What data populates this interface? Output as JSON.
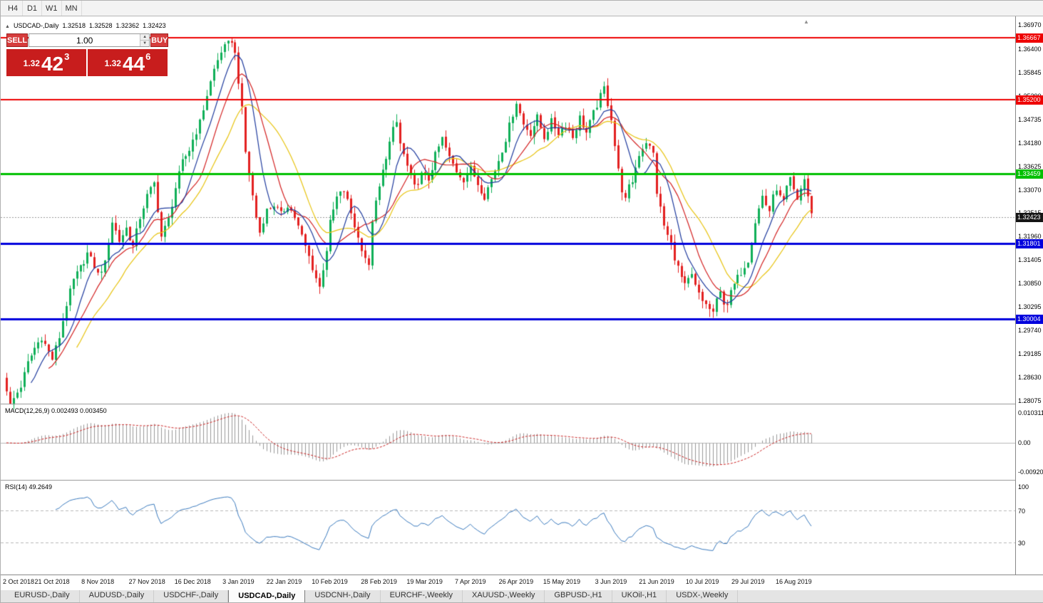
{
  "toolbar": {
    "timeframes": [
      "H4",
      "D1",
      "W1",
      "MN"
    ]
  },
  "icons": {
    "collapse": "▲",
    "shift_marker": "▲",
    "spin_up": "▲",
    "spin_down": "▼"
  },
  "trade_panel": {
    "sell_label": "SELL",
    "buy_label": "BUY",
    "volume": "1.00",
    "sell_price_prefix": "1.32",
    "sell_price_big": "42",
    "sell_price_sup": "3",
    "buy_price_prefix": "1.32",
    "buy_price_big": "44",
    "buy_price_sup": "6"
  },
  "tabs": [
    {
      "label": "EURUSD-,Daily",
      "active": false
    },
    {
      "label": "AUDUSD-,Daily",
      "active": false
    },
    {
      "label": "USDCHF-,Daily",
      "active": false
    },
    {
      "label": "USDCAD-,Daily",
      "active": true
    },
    {
      "label": "USDCNH-,Daily",
      "active": false
    },
    {
      "label": "EURCHF-,Weekly",
      "active": false
    },
    {
      "label": "XAUUSD-,Weekly",
      "active": false
    },
    {
      "label": "GBPUSD-,H1",
      "active": false
    },
    {
      "label": "UKOil-,H1",
      "active": false
    },
    {
      "label": "USDX-,Weekly",
      "active": false
    }
  ],
  "chart_data": {
    "type": "candlestick",
    "symbol": "USDCAD",
    "timeframe": "Daily",
    "title": "USDCAD-,Daily",
    "last_bar": {
      "open": "1.32518",
      "high": "1.32528",
      "low": "1.32362",
      "close": "1.32423"
    },
    "bars": 230,
    "view": {
      "price_top": 1.3718,
      "price_bottom": 1.28
    },
    "candle_up_color": "#0faf58",
    "candle_down_color": "#e32020",
    "price_axis_ticks": [
      "1.36970",
      "1.36400",
      "1.35845",
      "1.35290",
      "1.34735",
      "1.34180",
      "1.33625",
      "1.33070",
      "1.32515",
      "1.31960",
      "1.31405",
      "1.30850",
      "1.30295",
      "1.29740",
      "1.29185",
      "1.28630",
      "1.28075"
    ],
    "hlines": [
      {
        "price": 1.36667,
        "label": "1.36667",
        "color": "#ee0000",
        "width": 2
      },
      {
        "price": 1.352,
        "label": "1.35200",
        "color": "#ee0000",
        "width": 2
      },
      {
        "price": 1.33459,
        "label": "1.33459",
        "color": "#00c000",
        "width": 3
      },
      {
        "price": 1.31801,
        "label": "1.31801",
        "color": "#0000dd",
        "width": 3
      },
      {
        "price": 1.30004,
        "label": "1.30004",
        "color": "#0000dd",
        "width": 3
      }
    ],
    "current_price": {
      "value": 1.32423,
      "label": "1.32423",
      "tag_color": "#151515"
    },
    "moving_averages": [
      {
        "period": 21,
        "color": "#e8c410"
      },
      {
        "period": 13,
        "color": "#d42222"
      },
      {
        "period": 8,
        "color": "#1f3b9e"
      }
    ],
    "macd": {
      "fast": 12,
      "slow": 26,
      "signal": 9,
      "value": "0.002493",
      "signal_value": "0.003450",
      "label": "MACD(12,26,9) 0.002493 0.003450",
      "hist_color": "#999999",
      "signal_color": "#cc2222",
      "ticks": [
        "0.010311",
        "0.00",
        "-0.009203"
      ]
    },
    "rsi": {
      "period": 14,
      "value": "49.2649",
      "label": "RSI(14) 49.2649",
      "color": "#3b7bbf",
      "levels": [
        70,
        30
      ],
      "ticks": [
        "100",
        "70",
        "30"
      ]
    },
    "date_labels": [
      {
        "label": "2 Oct 2018",
        "i": 0
      },
      {
        "label": "21 Oct 2018",
        "i": 13
      },
      {
        "label": "8 Nov 2018",
        "i": 26
      },
      {
        "label": "27 Nov 2018",
        "i": 40
      },
      {
        "label": "16 Dec 2018",
        "i": 53
      },
      {
        "label": "3 Jan 2019",
        "i": 66
      },
      {
        "label": "22 Jan 2019",
        "i": 79
      },
      {
        "label": "10 Feb 2019",
        "i": 92
      },
      {
        "label": "28 Feb 2019",
        "i": 106
      },
      {
        "label": "19 Mar 2019",
        "i": 119
      },
      {
        "label": "7 Apr 2019",
        "i": 132
      },
      {
        "label": "26 Apr 2019",
        "i": 145
      },
      {
        "label": "15 May 2019",
        "i": 158
      },
      {
        "label": "3 Jun 2019",
        "i": 172
      },
      {
        "label": "21 Jun 2019",
        "i": 185
      },
      {
        "label": "10 Jul 2019",
        "i": 198
      },
      {
        "label": "29 Jul 2019",
        "i": 211
      },
      {
        "label": "16 Aug 2019",
        "i": 224
      }
    ],
    "close_path_anchors": [
      [
        0,
        1.2835
      ],
      [
        1,
        1.2795
      ],
      [
        2,
        1.2812
      ],
      [
        4,
        1.2842
      ],
      [
        6,
        1.2896
      ],
      [
        8,
        1.2932
      ],
      [
        10,
        1.2958
      ],
      [
        12,
        1.2922
      ],
      [
        13,
        1.2906
      ],
      [
        15,
        1.2958
      ],
      [
        17,
        1.3036
      ],
      [
        19,
        1.3092
      ],
      [
        21,
        1.3122
      ],
      [
        23,
        1.3156
      ],
      [
        25,
        1.3126
      ],
      [
        26,
        1.3106
      ],
      [
        28,
        1.3132
      ],
      [
        30,
        1.3232
      ],
      [
        32,
        1.3186
      ],
      [
        34,
        1.3216
      ],
      [
        36,
        1.3172
      ],
      [
        38,
        1.3242
      ],
      [
        40,
        1.3292
      ],
      [
        42,
        1.3322
      ],
      [
        43,
        1.3262
      ],
      [
        44,
        1.3196
      ],
      [
        46,
        1.3236
      ],
      [
        48,
        1.3312
      ],
      [
        50,
        1.3372
      ],
      [
        52,
        1.3402
      ],
      [
        53,
        1.3426
      ],
      [
        55,
        1.3466
      ],
      [
        57,
        1.3532
      ],
      [
        59,
        1.3592
      ],
      [
        61,
        1.3636
      ],
      [
        63,
        1.3652
      ],
      [
        64,
        1.3662
      ],
      [
        65,
        1.3628
      ],
      [
        66,
        1.3566
      ],
      [
        67,
        1.3496
      ],
      [
        68,
        1.3396
      ],
      [
        69,
        1.3346
      ],
      [
        70,
        1.3292
      ],
      [
        71,
        1.3242
      ],
      [
        72,
        1.3206
      ],
      [
        73,
        1.3236
      ],
      [
        74,
        1.3258
      ],
      [
        76,
        1.3272
      ],
      [
        78,
        1.3248
      ],
      [
        80,
        1.3272
      ],
      [
        82,
        1.3242
      ],
      [
        84,
        1.3196
      ],
      [
        86,
        1.3148
      ],
      [
        88,
        1.3098
      ],
      [
        89,
        1.3076
      ],
      [
        90,
        1.3122
      ],
      [
        91,
        1.3166
      ],
      [
        92,
        1.3228
      ],
      [
        94,
        1.3288
      ],
      [
        96,
        1.3306
      ],
      [
        98,
        1.3252
      ],
      [
        100,
        1.3192
      ],
      [
        102,
        1.3148
      ],
      [
        103,
        1.3122
      ],
      [
        104,
        1.3236
      ],
      [
        106,
        1.3312
      ],
      [
        108,
        1.3388
      ],
      [
        110,
        1.3448
      ],
      [
        111,
        1.3466
      ],
      [
        112,
        1.3416
      ],
      [
        114,
        1.3362
      ],
      [
        116,
        1.3312
      ],
      [
        118,
        1.3342
      ],
      [
        120,
        1.3332
      ],
      [
        122,
        1.3388
      ],
      [
        124,
        1.3428
      ],
      [
        126,
        1.3382
      ],
      [
        128,
        1.3352
      ],
      [
        130,
        1.3332
      ],
      [
        132,
        1.3358
      ],
      [
        134,
        1.3322
      ],
      [
        136,
        1.3292
      ],
      [
        138,
        1.3332
      ],
      [
        140,
        1.3378
      ],
      [
        142,
        1.3428
      ],
      [
        144,
        1.3488
      ],
      [
        145,
        1.3516
      ],
      [
        146,
        1.3488
      ],
      [
        147,
        1.3462
      ],
      [
        149,
        1.3442
      ],
      [
        151,
        1.3478
      ],
      [
        153,
        1.3432
      ],
      [
        155,
        1.3468
      ],
      [
        157,
        1.3442
      ],
      [
        159,
        1.3462
      ],
      [
        161,
        1.3432
      ],
      [
        163,
        1.3478
      ],
      [
        165,
        1.3442
      ],
      [
        167,
        1.3488
      ],
      [
        169,
        1.3528
      ],
      [
        170,
        1.3548
      ],
      [
        171,
        1.3512
      ],
      [
        172,
        1.3478
      ],
      [
        173,
        1.3412
      ],
      [
        174,
        1.3352
      ],
      [
        175,
        1.3308
      ],
      [
        176,
        1.3282
      ],
      [
        177,
        1.3312
      ],
      [
        178,
        1.3328
      ],
      [
        180,
        1.3392
      ],
      [
        182,
        1.3422
      ],
      [
        184,
        1.3392
      ],
      [
        185,
        1.3302
      ],
      [
        186,
        1.3262
      ],
      [
        187,
        1.3222
      ],
      [
        188,
        1.3198
      ],
      [
        189,
        1.3178
      ],
      [
        190,
        1.3148
      ],
      [
        191,
        1.3122
      ],
      [
        192,
        1.3098
      ],
      [
        193,
        1.3078
      ],
      [
        194,
        1.3092
      ],
      [
        195,
        1.3102
      ],
      [
        196,
        1.3078
      ],
      [
        197,
        1.3058
      ],
      [
        198,
        1.3042
      ],
      [
        199,
        1.3038
      ],
      [
        200,
        1.3022
      ],
      [
        201,
        1.3018
      ],
      [
        202,
        1.3042
      ],
      [
        203,
        1.3062
      ],
      [
        204,
        1.3042
      ],
      [
        205,
        1.3038
      ],
      [
        206,
        1.3062
      ],
      [
        207,
        1.3082
      ],
      [
        208,
        1.3098
      ],
      [
        209,
        1.3112
      ],
      [
        210,
        1.3128
      ],
      [
        211,
        1.3142
      ],
      [
        212,
        1.3188
      ],
      [
        213,
        1.3232
      ],
      [
        214,
        1.3262
      ],
      [
        215,
        1.3292
      ],
      [
        216,
        1.3272
      ],
      [
        217,
        1.3258
      ],
      [
        218,
        1.3288
      ],
      [
        219,
        1.3312
      ],
      [
        220,
        1.3288
      ],
      [
        221,
        1.3278
      ],
      [
        222,
        1.3308
      ],
      [
        223,
        1.3332
      ],
      [
        224,
        1.3302
      ],
      [
        225,
        1.3282
      ],
      [
        226,
        1.3312
      ],
      [
        227,
        1.3332
      ],
      [
        228,
        1.3292
      ],
      [
        229,
        1.3247
      ]
    ]
  }
}
